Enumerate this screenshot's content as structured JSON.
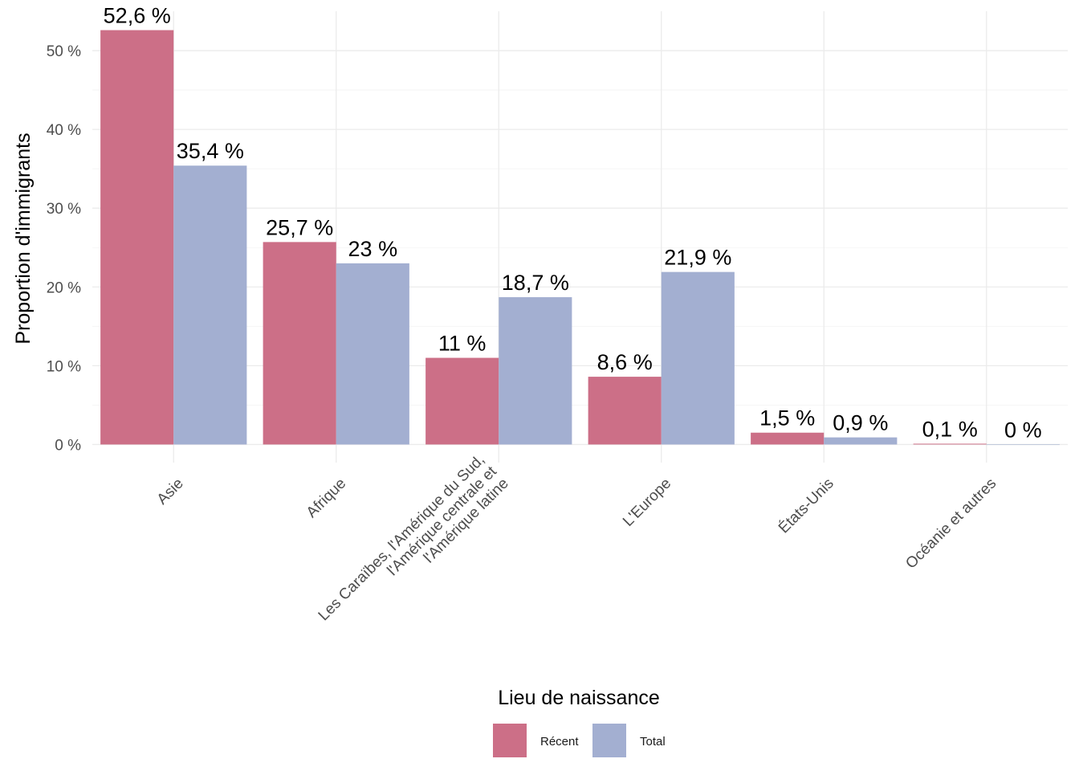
{
  "chart_data": {
    "type": "bar",
    "title": "",
    "xlabel": "Lieu de naissance",
    "ylabel": "Proportion d'immigrants",
    "categories": [
      [
        "Asie"
      ],
      [
        "Afrique"
      ],
      [
        "Les Caraïbes, l'Amérique du Sud,",
        "l'Amérique centrale et",
        "l'Amérique latine"
      ],
      [
        "L'Europe"
      ],
      [
        "États-Unis"
      ],
      [
        "Océanie et autres"
      ]
    ],
    "series": [
      {
        "name": "Récent",
        "color": "#CC6F87",
        "values": [
          52.6,
          25.7,
          11,
          8.6,
          1.5,
          0.1
        ],
        "labels": [
          "52,6 %",
          "25,7 %",
          "11 %",
          "8,6 %",
          "1,5 %",
          "0,1 %"
        ]
      },
      {
        "name": "Total",
        "color": "#A3AFD1",
        "values": [
          35.4,
          23,
          18.7,
          21.9,
          0.9,
          0
        ],
        "labels": [
          "35,4 %",
          "23 %",
          "18,7 %",
          "21,9 %",
          "0,9 %",
          "0 %"
        ]
      }
    ],
    "yticks": [
      0,
      10,
      20,
      30,
      40,
      50
    ],
    "ytick_labels": [
      "0 %",
      "10 %",
      "20 %",
      "30 %",
      "40 %",
      "50 %"
    ],
    "ylim": [
      -2.3,
      55
    ],
    "grid": true,
    "legend_position": "bottom"
  }
}
